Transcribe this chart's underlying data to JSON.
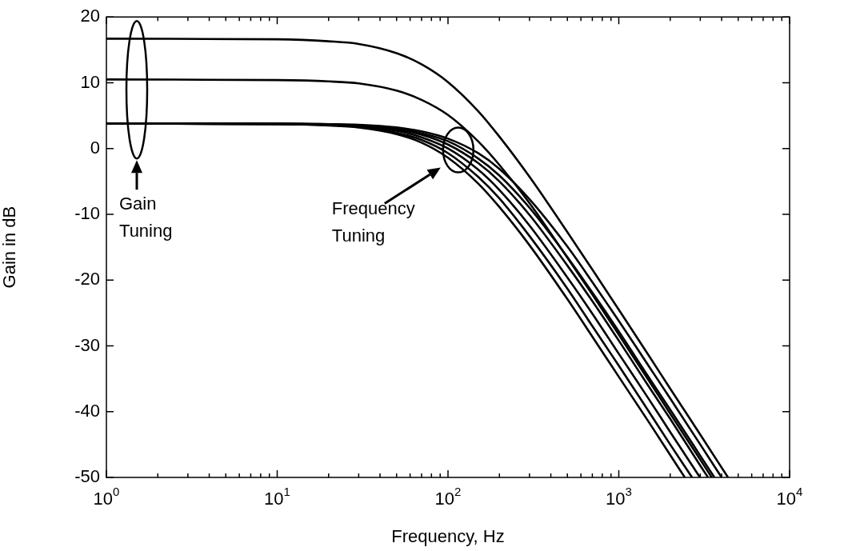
{
  "chart_data": {
    "type": "line",
    "xlabel": "Frequency, Hz",
    "ylabel": "Gain in dB",
    "log": "x",
    "grid": false,
    "legend": false,
    "marker": "none",
    "line_style": "solid",
    "xlim": [
      1,
      10000
    ],
    "ylim": [
      -50,
      20
    ],
    "xticks": [
      {
        "value": 1,
        "label": "10$^{0}$"
      },
      {
        "value": 2,
        "label": null
      },
      {
        "value": 3,
        "label": null
      },
      {
        "value": 4,
        "label": null
      },
      {
        "value": 5,
        "label": null
      },
      {
        "value": 6,
        "label": null
      },
      {
        "value": 7,
        "label": null
      },
      {
        "value": 8,
        "label": null
      },
      {
        "value": 9,
        "label": null
      },
      {
        "value": 10,
        "label": "10$^{1}$"
      },
      {
        "value": 20,
        "label": null
      },
      {
        "value": 30,
        "label": null
      },
      {
        "value": 40,
        "label": null
      },
      {
        "value": 50,
        "label": null
      },
      {
        "value": 60,
        "label": null
      },
      {
        "value": 70,
        "label": null
      },
      {
        "value": 80,
        "label": null
      },
      {
        "value": 90,
        "label": null
      },
      {
        "value": 100,
        "label": "10$^{2}$"
      },
      {
        "value": 200,
        "label": null
      },
      {
        "value": 300,
        "label": null
      },
      {
        "value": 400,
        "label": null
      },
      {
        "value": 500,
        "label": null
      },
      {
        "value": 600,
        "label": null
      },
      {
        "value": 700,
        "label": null
      },
      {
        "value": 800,
        "label": null
      },
      {
        "value": 900,
        "label": null
      },
      {
        "value": 1000,
        "label": "10$^{3}$"
      },
      {
        "value": 2000,
        "label": null
      },
      {
        "value": 3000,
        "label": null
      },
      {
        "value": 4000,
        "label": null
      },
      {
        "value": 5000,
        "label": null
      },
      {
        "value": 6000,
        "label": null
      },
      {
        "value": 7000,
        "label": null
      },
      {
        "value": 8000,
        "label": null
      },
      {
        "value": 9000,
        "label": null
      },
      {
        "value": 10000,
        "label": "10$^{4}$"
      }
    ],
    "yticks": [
      -50,
      -40,
      -30,
      -20,
      -10,
      0,
      10,
      20
    ],
    "annotations": [
      "Gain Tuning",
      "Frequency Tuning"
    ],
    "series": [
      {
        "color": "#000000",
        "x": [
          1,
          10,
          20,
          30,
          50,
          70,
          100,
          150,
          200,
          300,
          500,
          700,
          1000,
          1500,
          2000,
          3000,
          4360
        ],
        "values": [
          16.7,
          16.6,
          16.3,
          15.9,
          14.5,
          12.8,
          10.1,
          5.7,
          1.8,
          -4.3,
          -12.7,
          -18.4,
          -24.5,
          -31.5,
          -36.5,
          -43.5,
          -50
        ]
      },
      {
        "color": "#000000",
        "x": [
          1,
          10,
          20,
          30,
          50,
          70,
          100,
          150,
          200,
          300,
          500,
          700,
          1000,
          1500,
          2000,
          3000,
          3500
        ],
        "values": [
          10.5,
          10.4,
          10.2,
          9.9,
          8.8,
          7.4,
          5.1,
          1.1,
          -2.5,
          -8.3,
          -16.6,
          -22.2,
          -28.3,
          -35.3,
          -40.3,
          -47.3,
          -50
        ]
      },
      {
        "color": "#000000",
        "x": [
          1,
          10,
          20,
          30,
          50,
          70,
          100,
          150,
          200,
          300,
          500,
          700,
          1000,
          1500,
          2000,
          3000,
          4000
        ],
        "values": [
          3.8,
          3.8,
          3.7,
          3.6,
          3.2,
          2.6,
          1.5,
          -0.7,
          -3.1,
          -7.7,
          -14.9,
          -20.3,
          -26.2,
          -33.1,
          -38.0,
          -45.0,
          -50
        ]
      },
      {
        "color": "#000000",
        "x": [
          1,
          10,
          20,
          30,
          50,
          70,
          100,
          150,
          200,
          300,
          500,
          700,
          1000,
          1500,
          2000,
          3000,
          3630
        ],
        "values": [
          3.8,
          3.8,
          3.7,
          3.5,
          3.0,
          2.3,
          1.1,
          -1.5,
          -4.1,
          -9.0,
          -16.5,
          -21.9,
          -27.8,
          -34.8,
          -39.7,
          -46.7,
          -50
        ]
      },
      {
        "color": "#000000",
        "x": [
          1,
          10,
          20,
          30,
          50,
          70,
          100,
          150,
          200,
          300,
          500,
          700,
          1000,
          1500,
          2000,
          3000,
          3330
        ],
        "values": [
          3.8,
          3.8,
          3.6,
          3.5,
          2.9,
          2.1,
          0.6,
          -2.2,
          -5.0,
          -10.1,
          -17.8,
          -23.2,
          -29.2,
          -36.2,
          -41.1,
          -48.2,
          -50
        ]
      },
      {
        "color": "#000000",
        "x": [
          1,
          10,
          20,
          30,
          50,
          70,
          100,
          150,
          200,
          300,
          500,
          700,
          1000,
          1500,
          2000,
          2987
        ],
        "values": [
          3.8,
          3.7,
          3.6,
          3.4,
          2.7,
          1.7,
          0.0,
          -3.2,
          -6.3,
          -11.7,
          -19.6,
          -25.1,
          -31.2,
          -38.1,
          -43.1,
          -50
        ]
      },
      {
        "color": "#000000",
        "x": [
          1,
          10,
          20,
          30,
          50,
          70,
          100,
          150,
          200,
          300,
          500,
          700,
          1000,
          1500,
          2000,
          2685
        ],
        "values": [
          3.8,
          3.7,
          3.6,
          3.3,
          2.4,
          1.3,
          -0.7,
          -4.3,
          -7.6,
          -13.3,
          -21.3,
          -27.0,
          -33.0,
          -40.0,
          -45.0,
          -50
        ]
      },
      {
        "color": "#000000",
        "x": [
          1,
          10,
          20,
          30,
          50,
          70,
          100,
          150,
          200,
          300,
          500,
          700,
          1000,
          1500,
          2000,
          2435
        ],
        "values": [
          3.8,
          3.7,
          3.5,
          3.2,
          2.2,
          0.9,
          -1.4,
          -5.3,
          -8.9,
          -14.7,
          -22.9,
          -28.6,
          -34.7,
          -41.6,
          -46.6,
          -50
        ]
      }
    ]
  }
}
